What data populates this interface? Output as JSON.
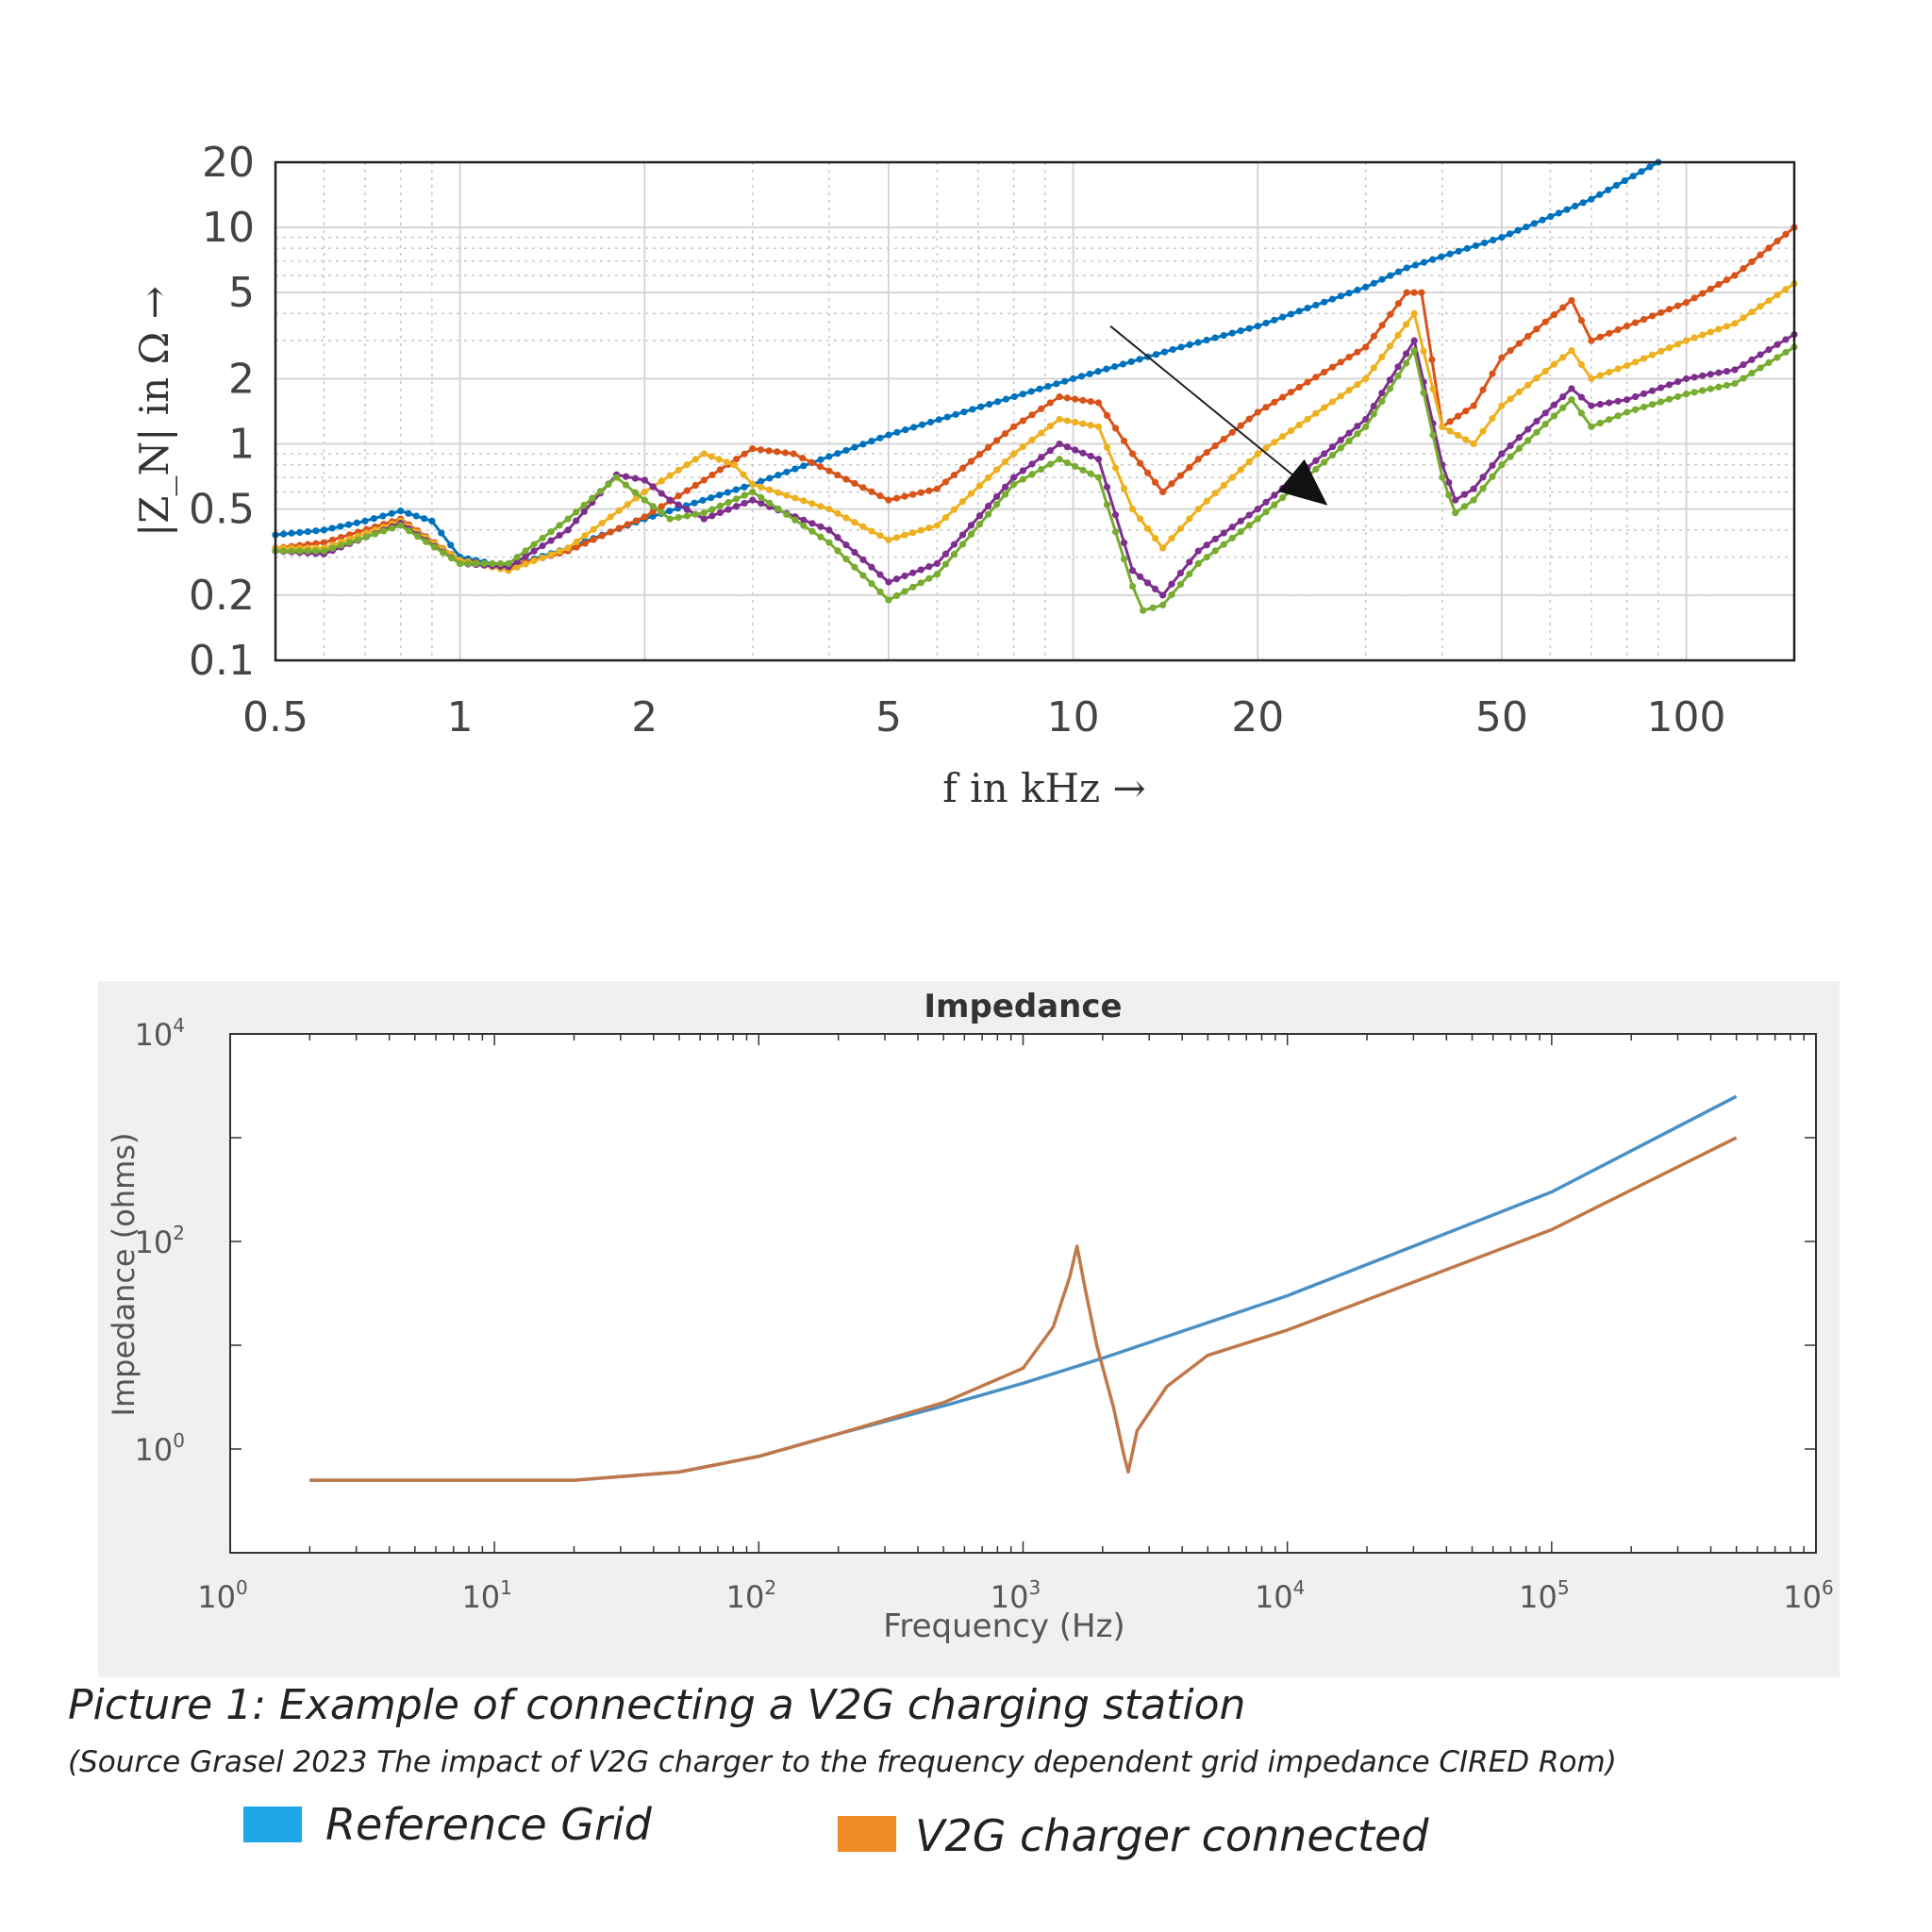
{
  "caption": {
    "title": "Picture 1: Example of connecting a V2G charging station",
    "source": "(Source Grasel 2023 The impact of V2G charger to the frequency dependent grid impedance CIRED Rom)"
  },
  "legend": {
    "items": [
      {
        "label": "Reference Grid",
        "color": "#1ea7e8"
      },
      {
        "label": "V2G charger connected",
        "color": "#f08a24"
      }
    ]
  },
  "chart_data": [
    {
      "type": "line",
      "title": "",
      "xlabel": "f in kHz →",
      "ylabel": "|Z_N| in Ω →",
      "xscale": "log",
      "yscale": "log",
      "xlim": [
        0.5,
        150
      ],
      "ylim": [
        0.1,
        20
      ],
      "x_ticks": [
        0.5,
        1,
        2,
        5,
        10,
        20,
        50,
        100
      ],
      "x_tick_labels": [
        "0.5",
        "1",
        "2",
        "5",
        "10",
        "20",
        "50",
        "100"
      ],
      "y_ticks": [
        0.1,
        0.2,
        0.5,
        1,
        2,
        5,
        10,
        20
      ],
      "y_tick_labels": [
        "0.1",
        "0.2",
        "0.5",
        "1",
        "2",
        "5",
        "10",
        "20"
      ],
      "grid": true,
      "markers": "dots",
      "annotation": "arrow pointing down-right across the curves near 15–25 kHz",
      "series": [
        {
          "color": "#0072bd",
          "points": [
            [
              0.5,
              0.38
            ],
            [
              0.6,
              0.4
            ],
            [
              0.7,
              0.44
            ],
            [
              0.8,
              0.49
            ],
            [
              0.9,
              0.44
            ],
            [
              1.0,
              0.3
            ],
            [
              1.2,
              0.27
            ],
            [
              1.5,
              0.33
            ],
            [
              2.0,
              0.45
            ],
            [
              3.0,
              0.65
            ],
            [
              5.0,
              1.1
            ],
            [
              10.0,
              2.0
            ],
            [
              15.0,
              2.8
            ],
            [
              20.0,
              3.5
            ],
            [
              30.0,
              5.3
            ],
            [
              35.0,
              6.5
            ],
            [
              50.0,
              9.0
            ],
            [
              70.0,
              13.5
            ],
            [
              90.0,
              20.0
            ]
          ]
        },
        {
          "color": "#d95319",
          "points": [
            [
              0.5,
              0.33
            ],
            [
              0.6,
              0.35
            ],
            [
              0.8,
              0.45
            ],
            [
              1.0,
              0.29
            ],
            [
              1.2,
              0.27
            ],
            [
              1.5,
              0.32
            ],
            [
              2.0,
              0.46
            ],
            [
              2.5,
              0.68
            ],
            [
              3.0,
              0.95
            ],
            [
              3.5,
              0.9
            ],
            [
              4.0,
              0.75
            ],
            [
              5.0,
              0.55
            ],
            [
              6.0,
              0.62
            ],
            [
              8.0,
              1.2
            ],
            [
              9.5,
              1.65
            ],
            [
              11.0,
              1.55
            ],
            [
              12.5,
              0.9
            ],
            [
              14.0,
              0.6
            ],
            [
              16.0,
              0.85
            ],
            [
              20.0,
              1.4
            ],
            [
              30.0,
              2.8
            ],
            [
              35.0,
              5.0
            ],
            [
              37.0,
              5.0
            ],
            [
              40.0,
              1.2
            ],
            [
              45.0,
              1.5
            ],
            [
              50.0,
              2.5
            ],
            [
              65.0,
              4.6
            ],
            [
              70.0,
              3.0
            ],
            [
              80.0,
              3.5
            ],
            [
              100.0,
              4.5
            ],
            [
              120.0,
              6.0
            ],
            [
              150.0,
              10.0
            ]
          ]
        },
        {
          "color": "#edb120",
          "points": [
            [
              0.5,
              0.33
            ],
            [
              0.6,
              0.33
            ],
            [
              0.8,
              0.44
            ],
            [
              1.0,
              0.29
            ],
            [
              1.2,
              0.26
            ],
            [
              1.5,
              0.33
            ],
            [
              2.0,
              0.6
            ],
            [
              2.5,
              0.9
            ],
            [
              2.8,
              0.8
            ],
            [
              3.0,
              0.65
            ],
            [
              4.0,
              0.5
            ],
            [
              5.0,
              0.36
            ],
            [
              6.0,
              0.42
            ],
            [
              8.0,
              0.9
            ],
            [
              9.5,
              1.3
            ],
            [
              11.0,
              1.2
            ],
            [
              12.5,
              0.5
            ],
            [
              14.0,
              0.33
            ],
            [
              16.0,
              0.5
            ],
            [
              20.0,
              0.9
            ],
            [
              30.0,
              2.0
            ],
            [
              36.0,
              4.0
            ],
            [
              40.0,
              1.2
            ],
            [
              45.0,
              1.0
            ],
            [
              50.0,
              1.5
            ],
            [
              65.0,
              2.7
            ],
            [
              70.0,
              2.0
            ],
            [
              80.0,
              2.3
            ],
            [
              100.0,
              3.0
            ],
            [
              120.0,
              3.6
            ],
            [
              150.0,
              5.5
            ]
          ]
        },
        {
          "color": "#7e2f8e",
          "points": [
            [
              0.5,
              0.32
            ],
            [
              0.6,
              0.31
            ],
            [
              0.8,
              0.43
            ],
            [
              1.0,
              0.28
            ],
            [
              1.2,
              0.27
            ],
            [
              1.5,
              0.4
            ],
            [
              1.8,
              0.72
            ],
            [
              2.0,
              0.68
            ],
            [
              2.2,
              0.55
            ],
            [
              2.5,
              0.45
            ],
            [
              3.0,
              0.55
            ],
            [
              4.0,
              0.4
            ],
            [
              5.0,
              0.23
            ],
            [
              6.0,
              0.28
            ],
            [
              8.0,
              0.7
            ],
            [
              9.5,
              1.0
            ],
            [
              11.0,
              0.85
            ],
            [
              12.5,
              0.26
            ],
            [
              14.0,
              0.2
            ],
            [
              16.0,
              0.32
            ],
            [
              20.0,
              0.5
            ],
            [
              30.0,
              1.3
            ],
            [
              36.0,
              3.0
            ],
            [
              40.0,
              0.8
            ],
            [
              42.0,
              0.55
            ],
            [
              45.0,
              0.62
            ],
            [
              50.0,
              0.9
            ],
            [
              65.0,
              1.8
            ],
            [
              70.0,
              1.5
            ],
            [
              80.0,
              1.6
            ],
            [
              100.0,
              2.0
            ],
            [
              120.0,
              2.2
            ],
            [
              150.0,
              3.2
            ]
          ]
        },
        {
          "color": "#77ac30",
          "points": [
            [
              0.5,
              0.32
            ],
            [
              0.6,
              0.32
            ],
            [
              0.8,
              0.42
            ],
            [
              1.0,
              0.28
            ],
            [
              1.2,
              0.28
            ],
            [
              1.5,
              0.45
            ],
            [
              1.8,
              0.7
            ],
            [
              2.0,
              0.55
            ],
            [
              2.2,
              0.45
            ],
            [
              2.5,
              0.48
            ],
            [
              3.0,
              0.6
            ],
            [
              4.0,
              0.35
            ],
            [
              5.0,
              0.19
            ],
            [
              6.0,
              0.25
            ],
            [
              8.0,
              0.65
            ],
            [
              9.5,
              0.85
            ],
            [
              11.0,
              0.7
            ],
            [
              12.5,
              0.22
            ],
            [
              13.0,
              0.17
            ],
            [
              14.0,
              0.18
            ],
            [
              16.0,
              0.28
            ],
            [
              20.0,
              0.45
            ],
            [
              30.0,
              1.2
            ],
            [
              36.0,
              2.7
            ],
            [
              40.0,
              0.7
            ],
            [
              42.0,
              0.48
            ],
            [
              45.0,
              0.55
            ],
            [
              50.0,
              0.8
            ],
            [
              65.0,
              1.6
            ],
            [
              70.0,
              1.2
            ],
            [
              80.0,
              1.4
            ],
            [
              100.0,
              1.7
            ],
            [
              120.0,
              1.9
            ],
            [
              150.0,
              2.8
            ]
          ]
        }
      ]
    },
    {
      "type": "line",
      "title": "Impedance",
      "xlabel": "Frequency (Hz)",
      "ylabel": "Impedance (ohms)",
      "xscale": "log",
      "yscale": "log",
      "xlim": [
        1,
        1000000
      ],
      "ylim": [
        0.1,
        10000
      ],
      "x_ticks": [
        1,
        10,
        100,
        1000,
        10000,
        100000,
        1000000
      ],
      "x_tick_labels": [
        [
          "10",
          "0"
        ],
        [
          "10",
          "1"
        ],
        [
          "10",
          "2"
        ],
        [
          "10",
          "3"
        ],
        [
          "10",
          "4"
        ],
        [
          "10",
          "5"
        ],
        [
          "10",
          "6"
        ]
      ],
      "y_ticks": [
        1,
        100,
        10000
      ],
      "y_tick_labels": [
        [
          "10",
          "0"
        ],
        [
          "10",
          "2"
        ],
        [
          "10",
          "4"
        ]
      ],
      "grid": false,
      "series": [
        {
          "name": "Reference Grid",
          "color": "#4a90c4",
          "points": [
            [
              2,
              0.5
            ],
            [
              20,
              0.5
            ],
            [
              50,
              0.6
            ],
            [
              100,
              0.85
            ],
            [
              200,
              1.4
            ],
            [
              500,
              2.6
            ],
            [
              1000,
              4.3
            ],
            [
              2000,
              7.5
            ],
            [
              10000,
              30
            ],
            [
              100000,
              300
            ],
            [
              500000,
              2500
            ]
          ]
        },
        {
          "name": "V2G charger connected",
          "color": "#c0784a",
          "points": [
            [
              2,
              0.5
            ],
            [
              20,
              0.5
            ],
            [
              50,
              0.6
            ],
            [
              100,
              0.85
            ],
            [
              200,
              1.4
            ],
            [
              500,
              2.8
            ],
            [
              1000,
              6.0
            ],
            [
              1300,
              15
            ],
            [
              1500,
              45
            ],
            [
              1600,
              90
            ],
            [
              1700,
              40
            ],
            [
              1900,
              10
            ],
            [
              2200,
              2.5
            ],
            [
              2400,
              0.9
            ],
            [
              2500,
              0.6
            ],
            [
              2700,
              1.5
            ],
            [
              3500,
              4.0
            ],
            [
              5000,
              8
            ],
            [
              10000,
              14
            ],
            [
              100000,
              130
            ],
            [
              500000,
              1000
            ]
          ]
        }
      ]
    }
  ]
}
